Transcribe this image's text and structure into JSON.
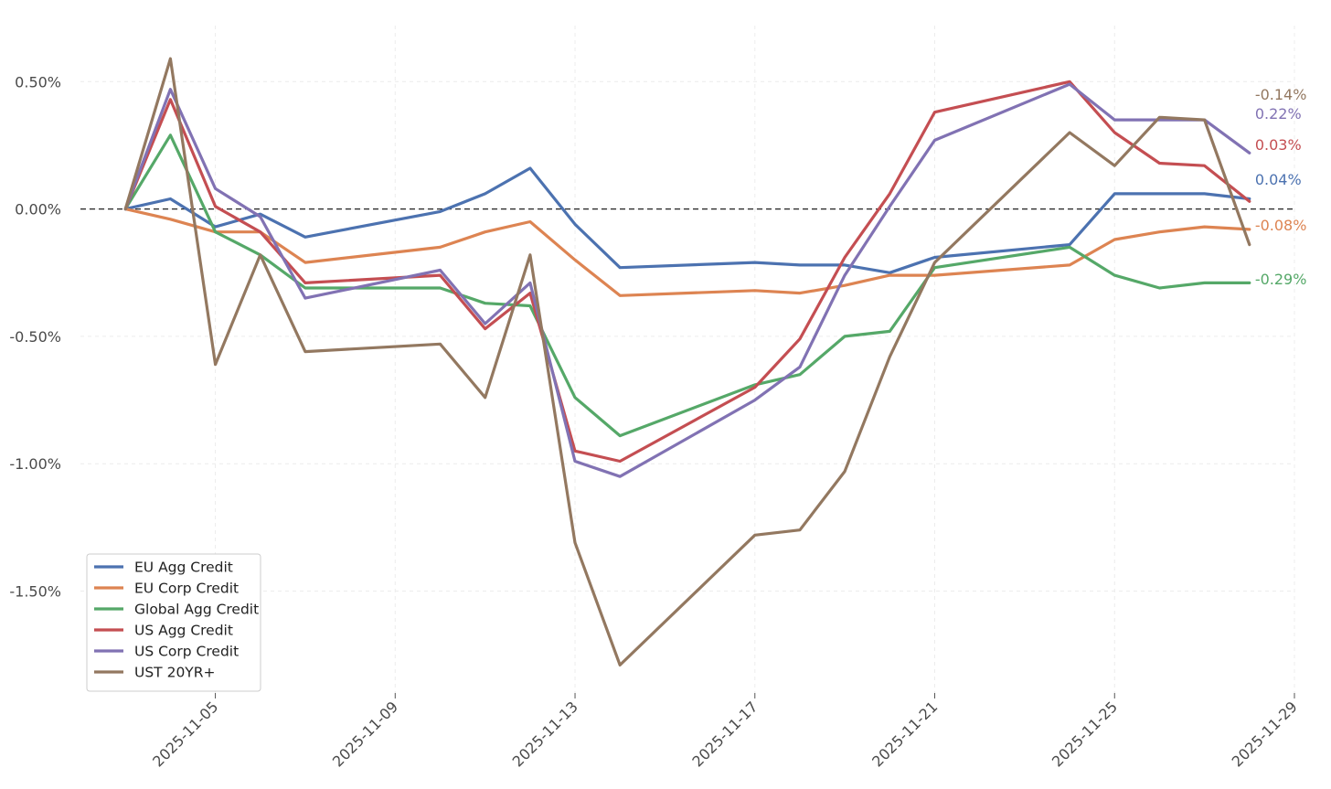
{
  "chart_data": {
    "type": "line",
    "title": "",
    "xlabel": "",
    "ylabel": "",
    "x": [
      "2025-11-03",
      "2025-11-04",
      "2025-11-05",
      "2025-11-06",
      "2025-11-07",
      "2025-11-10",
      "2025-11-11",
      "2025-11-12",
      "2025-11-13",
      "2025-11-14",
      "2025-11-17",
      "2025-11-18",
      "2025-11-19",
      "2025-11-20",
      "2025-11-21",
      "2025-11-24",
      "2025-11-25",
      "2025-11-26",
      "2025-11-27",
      "2025-11-28"
    ],
    "xlim": [
      "2025-11-02",
      "2025-11-29"
    ],
    "xticks": [
      "2025-11-05",
      "2025-11-09",
      "2025-11-13",
      "2025-11-17",
      "2025-11-21",
      "2025-11-25",
      "2025-11-29"
    ],
    "ylim": [
      -1.9,
      0.72
    ],
    "yticks": [
      0.5,
      0.0,
      -0.5,
      -1.0,
      -1.5
    ],
    "ytick_labels": [
      "0.50%",
      "0.00%",
      "-0.50%",
      "-1.00%",
      "-1.50%"
    ],
    "y_unit": "%",
    "grid": true,
    "reference_line": {
      "y": 0.0,
      "style": "dashed"
    },
    "legend_position": "lower-left",
    "series": [
      {
        "name": "EU Agg Credit",
        "color": "#4c72b0",
        "end_label": "0.04%",
        "values": [
          0.0,
          0.04,
          -0.07,
          -0.02,
          -0.11,
          -0.01,
          0.06,
          0.16,
          -0.06,
          -0.23,
          -0.21,
          -0.22,
          -0.22,
          -0.25,
          -0.19,
          -0.14,
          0.06,
          0.06,
          0.06,
          0.04
        ]
      },
      {
        "name": "EU Corp Credit",
        "color": "#dd8452",
        "end_label": "-0.08%",
        "values": [
          0.0,
          -0.04,
          -0.09,
          -0.09,
          -0.21,
          -0.15,
          -0.09,
          -0.05,
          -0.2,
          -0.34,
          -0.32,
          -0.33,
          -0.3,
          -0.26,
          -0.26,
          -0.22,
          -0.12,
          -0.09,
          -0.07,
          -0.08
        ]
      },
      {
        "name": "Global Agg Credit",
        "color": "#55a868",
        "end_label": "-0.29%",
        "values": [
          0.0,
          0.29,
          -0.09,
          -0.18,
          -0.31,
          -0.31,
          -0.37,
          -0.38,
          -0.74,
          -0.89,
          -0.69,
          -0.65,
          -0.5,
          -0.48,
          -0.23,
          -0.15,
          -0.26,
          -0.31,
          -0.29,
          -0.29
        ]
      },
      {
        "name": "US Agg Credit",
        "color": "#c44e52",
        "end_label": "0.03%",
        "values": [
          0.0,
          0.43,
          0.01,
          -0.09,
          -0.29,
          -0.26,
          -0.47,
          -0.33,
          -0.95,
          -0.99,
          -0.7,
          -0.51,
          -0.19,
          0.06,
          0.38,
          0.5,
          0.3,
          0.18,
          0.17,
          0.03
        ]
      },
      {
        "name": "US Corp Credit",
        "color": "#8172b3",
        "end_label": "0.22%",
        "values": [
          0.0,
          0.47,
          0.08,
          -0.03,
          -0.35,
          -0.24,
          -0.45,
          -0.29,
          -0.99,
          -1.05,
          -0.75,
          -0.62,
          -0.26,
          0.01,
          0.27,
          0.49,
          0.35,
          0.35,
          0.35,
          0.22
        ]
      },
      {
        "name": "UST 20YR+",
        "color": "#937860",
        "end_label": "-0.14%",
        "values": [
          0.0,
          0.59,
          -0.61,
          -0.18,
          -0.56,
          -0.53,
          -0.74,
          -0.18,
          -1.31,
          -1.79,
          -1.28,
          -1.26,
          -1.03,
          -0.58,
          -0.21,
          0.3,
          0.17,
          0.36,
          0.35,
          -0.14
        ]
      }
    ]
  }
}
